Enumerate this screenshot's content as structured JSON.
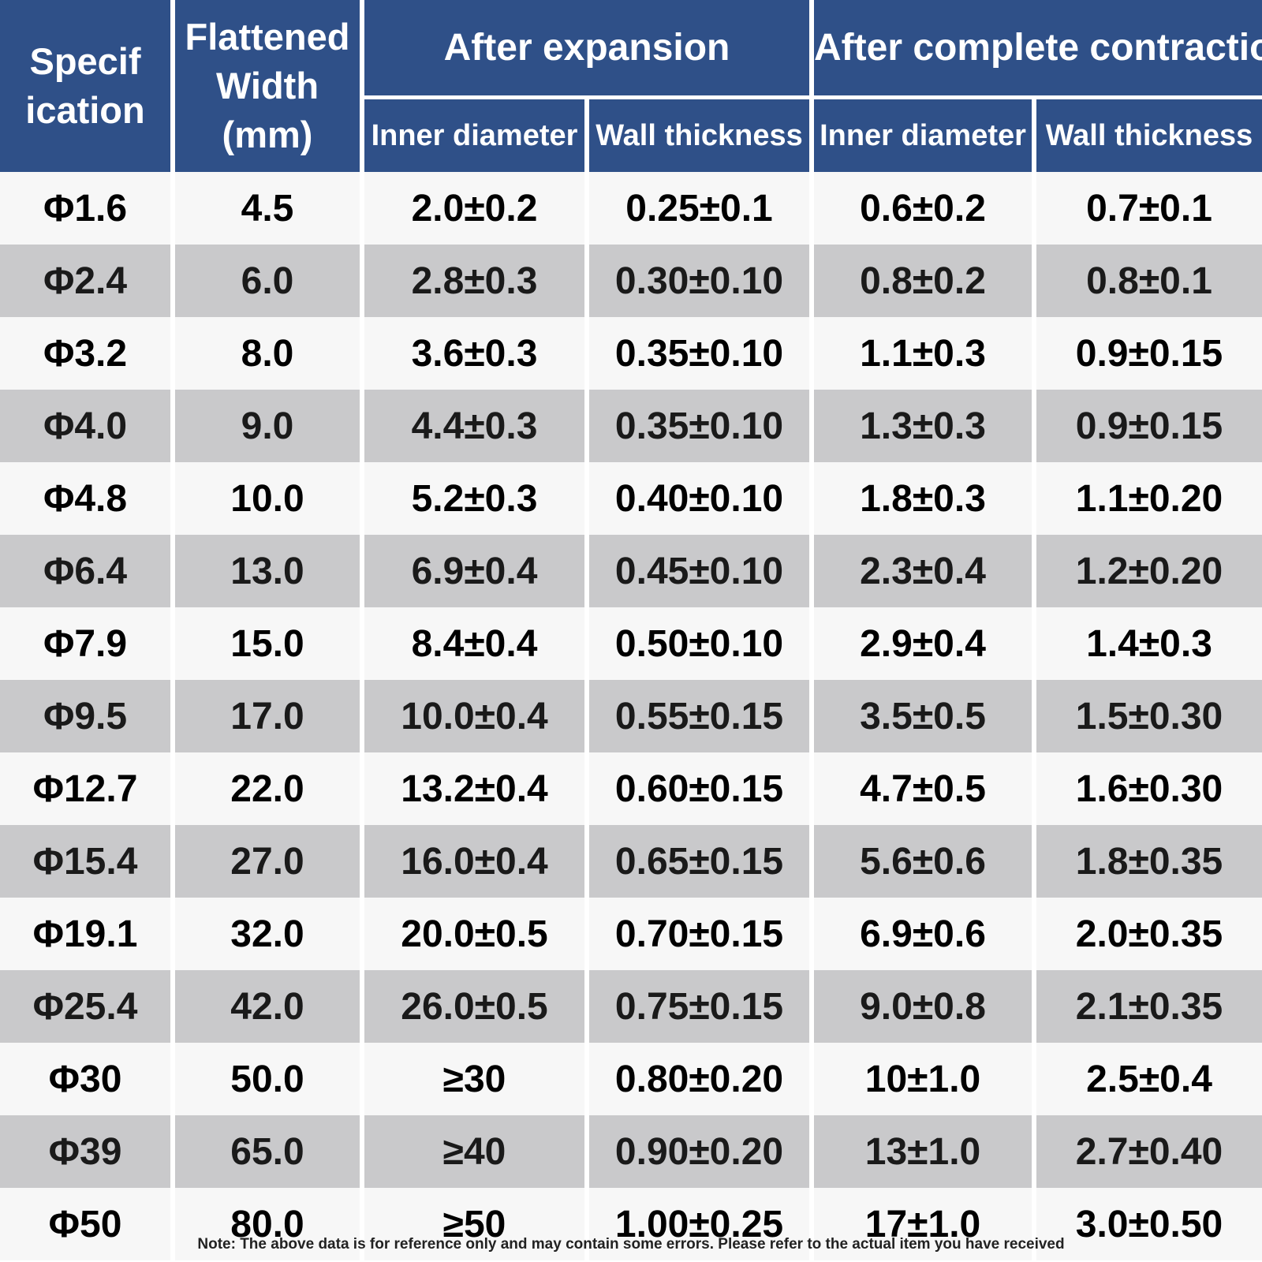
{
  "header": {
    "specification": [
      "Specif",
      "ication"
    ],
    "flattened_width": [
      "Flattened",
      "Width",
      "(mm)"
    ],
    "after_expansion": "After expansion",
    "after_contraction": "After complete contraction",
    "inner_diameter": "Inner diameter",
    "wall_thickness": "Wall thickness"
  },
  "rows": [
    [
      "Φ1.6",
      "4.5",
      "2.0±0.2",
      "0.25±0.1",
      "0.6±0.2",
      "0.7±0.1"
    ],
    [
      "Φ2.4",
      "6.0",
      "2.8±0.3",
      "0.30±0.10",
      "0.8±0.2",
      "0.8±0.1"
    ],
    [
      "Φ3.2",
      "8.0",
      "3.6±0.3",
      "0.35±0.10",
      "1.1±0.3",
      "0.9±0.15"
    ],
    [
      "Φ4.0",
      "9.0",
      "4.4±0.3",
      "0.35±0.10",
      "1.3±0.3",
      "0.9±0.15"
    ],
    [
      "Φ4.8",
      "10.0",
      "5.2±0.3",
      "0.40±0.10",
      "1.8±0.3",
      "1.1±0.20"
    ],
    [
      "Φ6.4",
      "13.0",
      "6.9±0.4",
      "0.45±0.10",
      "2.3±0.4",
      "1.2±0.20"
    ],
    [
      "Φ7.9",
      "15.0",
      "8.4±0.4",
      "0.50±0.10",
      "2.9±0.4",
      "1.4±0.3"
    ],
    [
      "Φ9.5",
      "17.0",
      "10.0±0.4",
      "0.55±0.15",
      "3.5±0.5",
      "1.5±0.30"
    ],
    [
      "Φ12.7",
      "22.0",
      "13.2±0.4",
      "0.60±0.15",
      "4.7±0.5",
      "1.6±0.30"
    ],
    [
      "Φ15.4",
      "27.0",
      "16.0±0.4",
      "0.65±0.15",
      "5.6±0.6",
      "1.8±0.35"
    ],
    [
      "Φ19.1",
      "32.0",
      "20.0±0.5",
      "0.70±0.15",
      "6.9±0.6",
      "2.0±0.35"
    ],
    [
      "Φ25.4",
      "42.0",
      "26.0±0.5",
      "0.75±0.15",
      "9.0±0.8",
      "2.1±0.35"
    ],
    [
      "Φ30",
      "50.0",
      "≥30",
      "0.80±0.20",
      "10±1.0",
      "2.5±0.4"
    ],
    [
      "Φ39",
      "65.0",
      "≥40",
      "0.90±0.20",
      "13±1.0",
      "2.7±0.40"
    ],
    [
      "Φ50",
      "80.0",
      "≥50",
      "1.00±0.25",
      "17±1.0",
      "3.0±0.50"
    ]
  ],
  "note": "Note: The above data is for reference only and may contain some errors. Please refer to the actual item you have received",
  "colors": {
    "header_bg": "#2f5088",
    "row_light": "#f7f7f7",
    "row_dark": "#c9c9cb"
  }
}
